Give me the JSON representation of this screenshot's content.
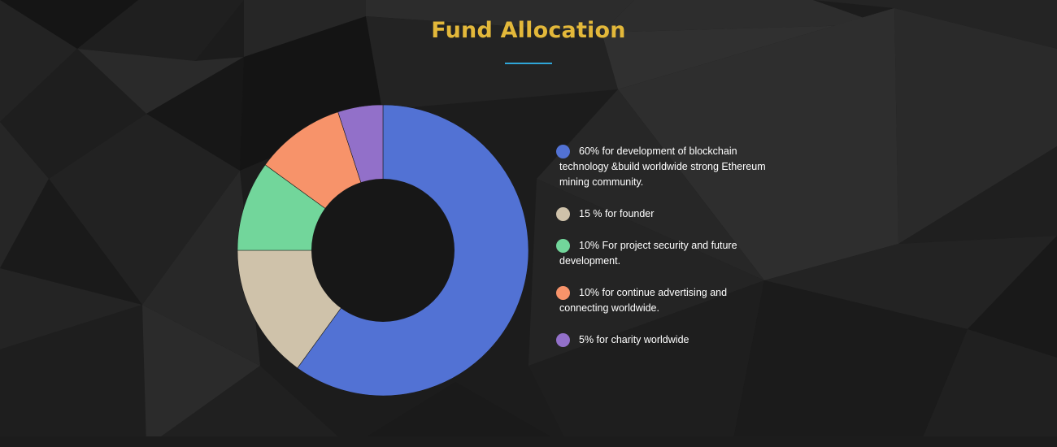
{
  "header": {
    "title": "Fund Allocation"
  },
  "chart_data": {
    "type": "pie",
    "donut": true,
    "legend_position": "right",
    "start_angle_deg": 0,
    "direction": "clockwise",
    "slices": [
      {
        "label": "60% for development of blockchain technology &build worldwide strong Ethereum mining community.",
        "value": 60,
        "color": "#5272d4"
      },
      {
        "label": "15 % for founder",
        "value": 15,
        "color": "#cfc2aa"
      },
      {
        "label": "10% For project security and future development.",
        "value": 10,
        "color": "#72d69b"
      },
      {
        "label": "10% for continue advertising and connecting worldwide.",
        "value": 10,
        "color": "#f7936a"
      },
      {
        "label": "5% for charity worldwide",
        "value": 5,
        "color": "#9270c9"
      }
    ]
  },
  "colors": {
    "title": "#e3b83a",
    "underline": "#2fa6d8",
    "background": "#1b1b1b"
  }
}
